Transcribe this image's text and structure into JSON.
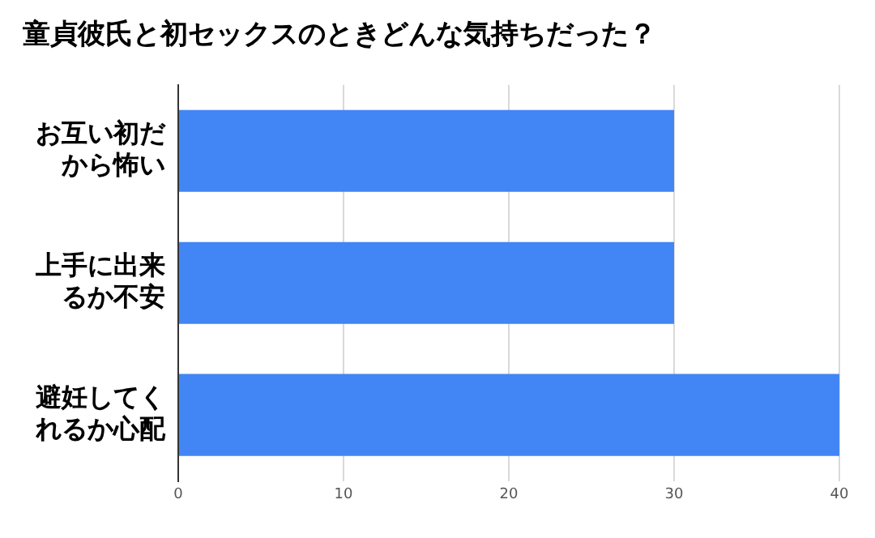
{
  "chart_data": {
    "type": "bar",
    "orientation": "horizontal",
    "title": "童貞彼氏と初セックスのときどんな気持ちだった？",
    "categories": [
      "お互い初だから怖い",
      "上手に出来るか不安",
      "避妊してくれるか心配"
    ],
    "values": [
      30,
      30,
      40
    ],
    "color": "#4285f4",
    "xlim": [
      0,
      40
    ],
    "xticks": [
      0,
      10,
      20,
      30,
      40
    ],
    "grid": "x"
  }
}
